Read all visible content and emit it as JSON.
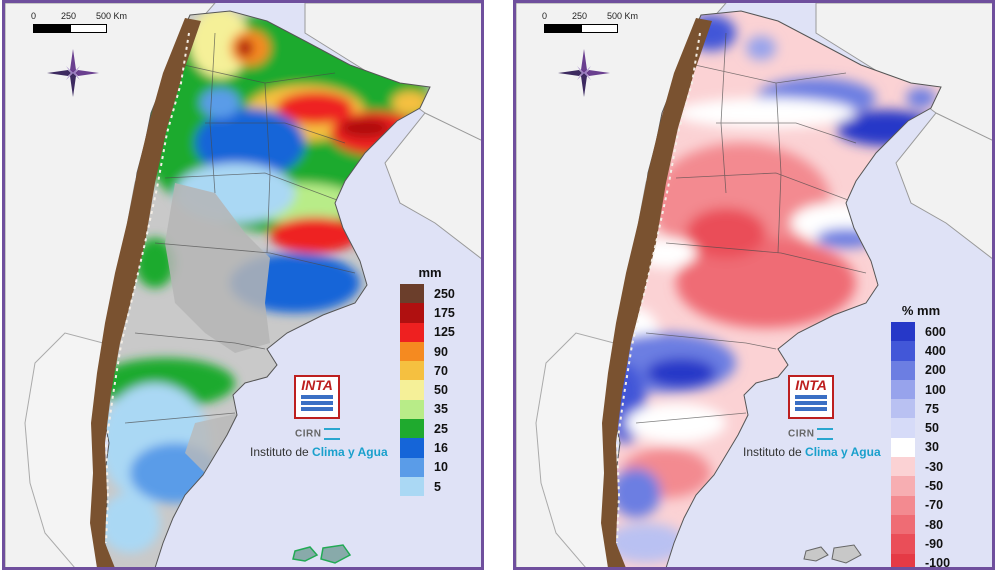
{
  "panels": [
    {
      "id": "precipitation",
      "scale": {
        "labels": [
          "0",
          "250",
          "500 Km"
        ]
      },
      "legend": {
        "title": "mm",
        "items": [
          {
            "label": "250",
            "color": "#6b3e2b"
          },
          {
            "label": "175",
            "color": "#b01010"
          },
          {
            "label": "125",
            "color": "#ee2020"
          },
          {
            "label": "90",
            "color": "#f58a20"
          },
          {
            "label": "70",
            "color": "#f5c040"
          },
          {
            "label": "50",
            "color": "#f5f098"
          },
          {
            "label": "35",
            "color": "#b8ec88"
          },
          {
            "label": "25",
            "color": "#1faa2e"
          },
          {
            "label": "16",
            "color": "#1565d8"
          },
          {
            "label": "10",
            "color": "#5a9ce8"
          },
          {
            "label": "5",
            "color": "#aad8f4"
          }
        ]
      },
      "logo": {
        "name": "INTA",
        "center": "CIRN"
      },
      "credit": {
        "prefix": "Instituto de ",
        "highlight": "Clima y Agua"
      }
    },
    {
      "id": "anomaly",
      "scale": {
        "labels": [
          "0",
          "250",
          "500 Km"
        ]
      },
      "legend": {
        "title": "% mm",
        "items": [
          {
            "label": "600",
            "color": "#2638c8"
          },
          {
            "label": "400",
            "color": "#4257d8"
          },
          {
            "label": "200",
            "color": "#6c7ee2"
          },
          {
            "label": "100",
            "color": "#97a3ec"
          },
          {
            "label": "75",
            "color": "#b9c1f2"
          },
          {
            "label": "50",
            "color": "#d6dbf8"
          },
          {
            "label": "30",
            "color": "#ffffff"
          },
          {
            "label": "-30",
            "color": "#fbd2d4"
          },
          {
            "label": "-50",
            "color": "#f7aeb2"
          },
          {
            "label": "-70",
            "color": "#f38a90"
          },
          {
            "label": "-80",
            "color": "#ef6c74"
          },
          {
            "label": "-90",
            "color": "#ea4e58"
          },
          {
            "label": "-100",
            "color": "#e53a45"
          }
        ]
      },
      "logo": {
        "name": "INTA",
        "center": "CIRN"
      },
      "credit": {
        "prefix": "Instituto de ",
        "highlight": "Clima y Agua"
      }
    }
  ]
}
